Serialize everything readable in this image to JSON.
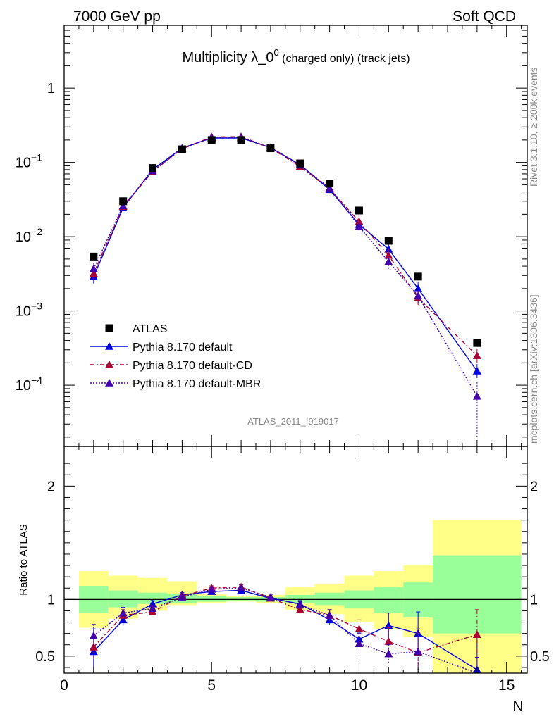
{
  "header": {
    "left": "7000 GeV pp",
    "right": "Soft QCD"
  },
  "title": {
    "main": "Multiplicity λ_0",
    "sup": "0",
    "suffix": " (charged only) (track jets)"
  },
  "side_labels": {
    "rivet": "Rivet 3.1.10, ≥ 200k events",
    "mcplots": "mcplots.cern.ch [arXiv:1306.3436]"
  },
  "analysis_id": "ATLAS_2011_I919017",
  "ratio_ylabel": "Ratio to ATLAS",
  "xlabel": "N",
  "legend": [
    {
      "label": "ATLAS",
      "color": "#000000",
      "marker": "square",
      "dash": "none"
    },
    {
      "label": "Pythia 8.170 default",
      "color": "#0000dd",
      "marker": "triangle",
      "dash": "solid"
    },
    {
      "label": "Pythia 8.170 default-CD",
      "color": "#aa0033",
      "marker": "triangle",
      "dash": "dashdot"
    },
    {
      "label": "Pythia 8.170 default-MBR",
      "color": "#4400aa",
      "marker": "triangle",
      "dash": "dotted"
    }
  ],
  "chart_data": {
    "type": "scatter",
    "x_axis": {
      "range": [
        0,
        15.7
      ],
      "ticks": [
        0,
        5,
        10,
        15
      ],
      "label": "N"
    },
    "main_y_axis": {
      "scale": "log",
      "range": [
        1.5e-05,
        7
      ],
      "ticks": [
        "10^-4",
        "10^-3",
        "10^-2",
        "10^-1",
        "1"
      ]
    },
    "ratio_y_axis": {
      "scale": "linear",
      "range": [
        0.35,
        2.35
      ],
      "ticks": [
        0.5,
        1,
        2
      ]
    },
    "data": {
      "name": "ATLAS",
      "x": [
        1,
        2,
        3,
        4,
        5,
        6,
        7,
        8,
        9,
        10,
        11,
        12,
        14
      ],
      "y": [
        0.0054,
        0.03,
        0.084,
        0.15,
        0.2,
        0.2,
        0.155,
        0.097,
        0.052,
        0.0225,
        0.0088,
        0.0029,
        0.00037
      ]
    },
    "uncertainty_bands": {
      "edges": [
        0.5,
        1.5,
        2.5,
        3.5,
        4.5,
        5.5,
        6.5,
        7.5,
        8.5,
        9.5,
        10.5,
        11.5,
        12.5,
        15.5
      ],
      "green": [
        [
          0.88,
          1.12
        ],
        [
          0.93,
          1.08
        ],
        [
          0.96,
          1.06
        ],
        [
          0.97,
          1.05
        ],
        [
          0.98,
          1.03
        ],
        [
          0.99,
          1.02
        ],
        [
          0.98,
          1.02
        ],
        [
          0.97,
          1.04
        ],
        [
          0.95,
          1.06
        ],
        [
          0.92,
          1.08
        ],
        [
          0.88,
          1.11
        ],
        [
          0.84,
          1.15
        ],
        [
          0.7,
          1.39
        ]
      ],
      "yellow": [
        [
          0.75,
          1.25
        ],
        [
          0.83,
          1.21
        ],
        [
          0.9,
          1.19
        ],
        [
          0.95,
          1.16
        ],
        [
          0.97,
          1.05
        ],
        [
          0.98,
          1.03
        ],
        [
          0.97,
          1.04
        ],
        [
          0.91,
          1.11
        ],
        [
          0.87,
          1.14
        ],
        [
          0.8,
          1.21
        ],
        [
          0.74,
          1.25
        ],
        [
          0.67,
          1.3
        ],
        [
          0.35,
          1.7
        ]
      ]
    },
    "series": [
      {
        "name": "Pythia 8.170 default",
        "x": [
          1,
          2,
          3,
          4,
          5,
          6,
          7,
          8,
          9,
          10,
          11,
          12,
          14
        ],
        "y": [
          0.0029,
          0.0245,
          0.08,
          0.156,
          0.213,
          0.213,
          0.158,
          0.093,
          0.043,
          0.0146,
          0.0068,
          0.002,
          0.000155
        ],
        "ratio": [
          0.54,
          0.82,
          0.96,
          1.04,
          1.07,
          1.08,
          1.01,
          0.96,
          0.82,
          0.65,
          0.77,
          0.7,
          0.38
        ],
        "ratio_err": [
          0.2,
          0.05,
          0.03,
          0.02,
          0.02,
          0.02,
          0.02,
          0.03,
          0.04,
          0.06,
          0.11,
          0.19,
          0.3
        ]
      },
      {
        "name": "Pythia 8.170 default-CD",
        "x": [
          1,
          2,
          3,
          4,
          5,
          6,
          7,
          8,
          9,
          10,
          11,
          12,
          14
        ],
        "y": [
          0.0032,
          0.0255,
          0.075,
          0.153,
          0.22,
          0.222,
          0.156,
          0.088,
          0.044,
          0.016,
          0.0056,
          0.0015,
          0.00025
        ],
        "ratio": [
          0.58,
          0.86,
          0.89,
          1.03,
          1.1,
          1.11,
          1.01,
          0.91,
          0.86,
          0.74,
          0.63,
          0.53,
          0.69
        ],
        "ratio_err": [
          0.1,
          0.05,
          0.03,
          0.02,
          0.02,
          0.02,
          0.02,
          0.03,
          0.05,
          0.08,
          0.12,
          0.18,
          0.22
        ]
      },
      {
        "name": "Pythia 8.170 default-MBR",
        "x": [
          1,
          2,
          3,
          4,
          5,
          6,
          7,
          8,
          9,
          10,
          11,
          12,
          14
        ],
        "y": [
          0.0037,
          0.026,
          0.077,
          0.152,
          0.216,
          0.218,
          0.158,
          0.092,
          0.045,
          0.0137,
          0.0046,
          0.0016,
          7.1e-05
        ],
        "ratio": [
          0.68,
          0.88,
          0.92,
          1.02,
          1.09,
          1.1,
          1.02,
          0.95,
          0.86,
          0.61,
          0.52,
          0.54,
          0.19
        ],
        "ratio_err": [
          0.1,
          0.05,
          0.03,
          0.02,
          0.02,
          0.02,
          0.02,
          0.03,
          0.05,
          0.09,
          0.08,
          0.2,
          0.3
        ]
      }
    ]
  }
}
